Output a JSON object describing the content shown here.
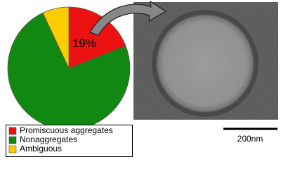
{
  "chart_data": {
    "type": "pie",
    "categories": [
      "Promiscuous aggregates",
      "Nonaggregates",
      "Ambiguous"
    ],
    "values": [
      19,
      74,
      7
    ],
    "value_labels": [
      "19%",
      null,
      null
    ],
    "colors": [
      "#ee1111",
      "#118811",
      "#ffcc00"
    ],
    "annotations": [
      "200nm"
    ]
  }
}
